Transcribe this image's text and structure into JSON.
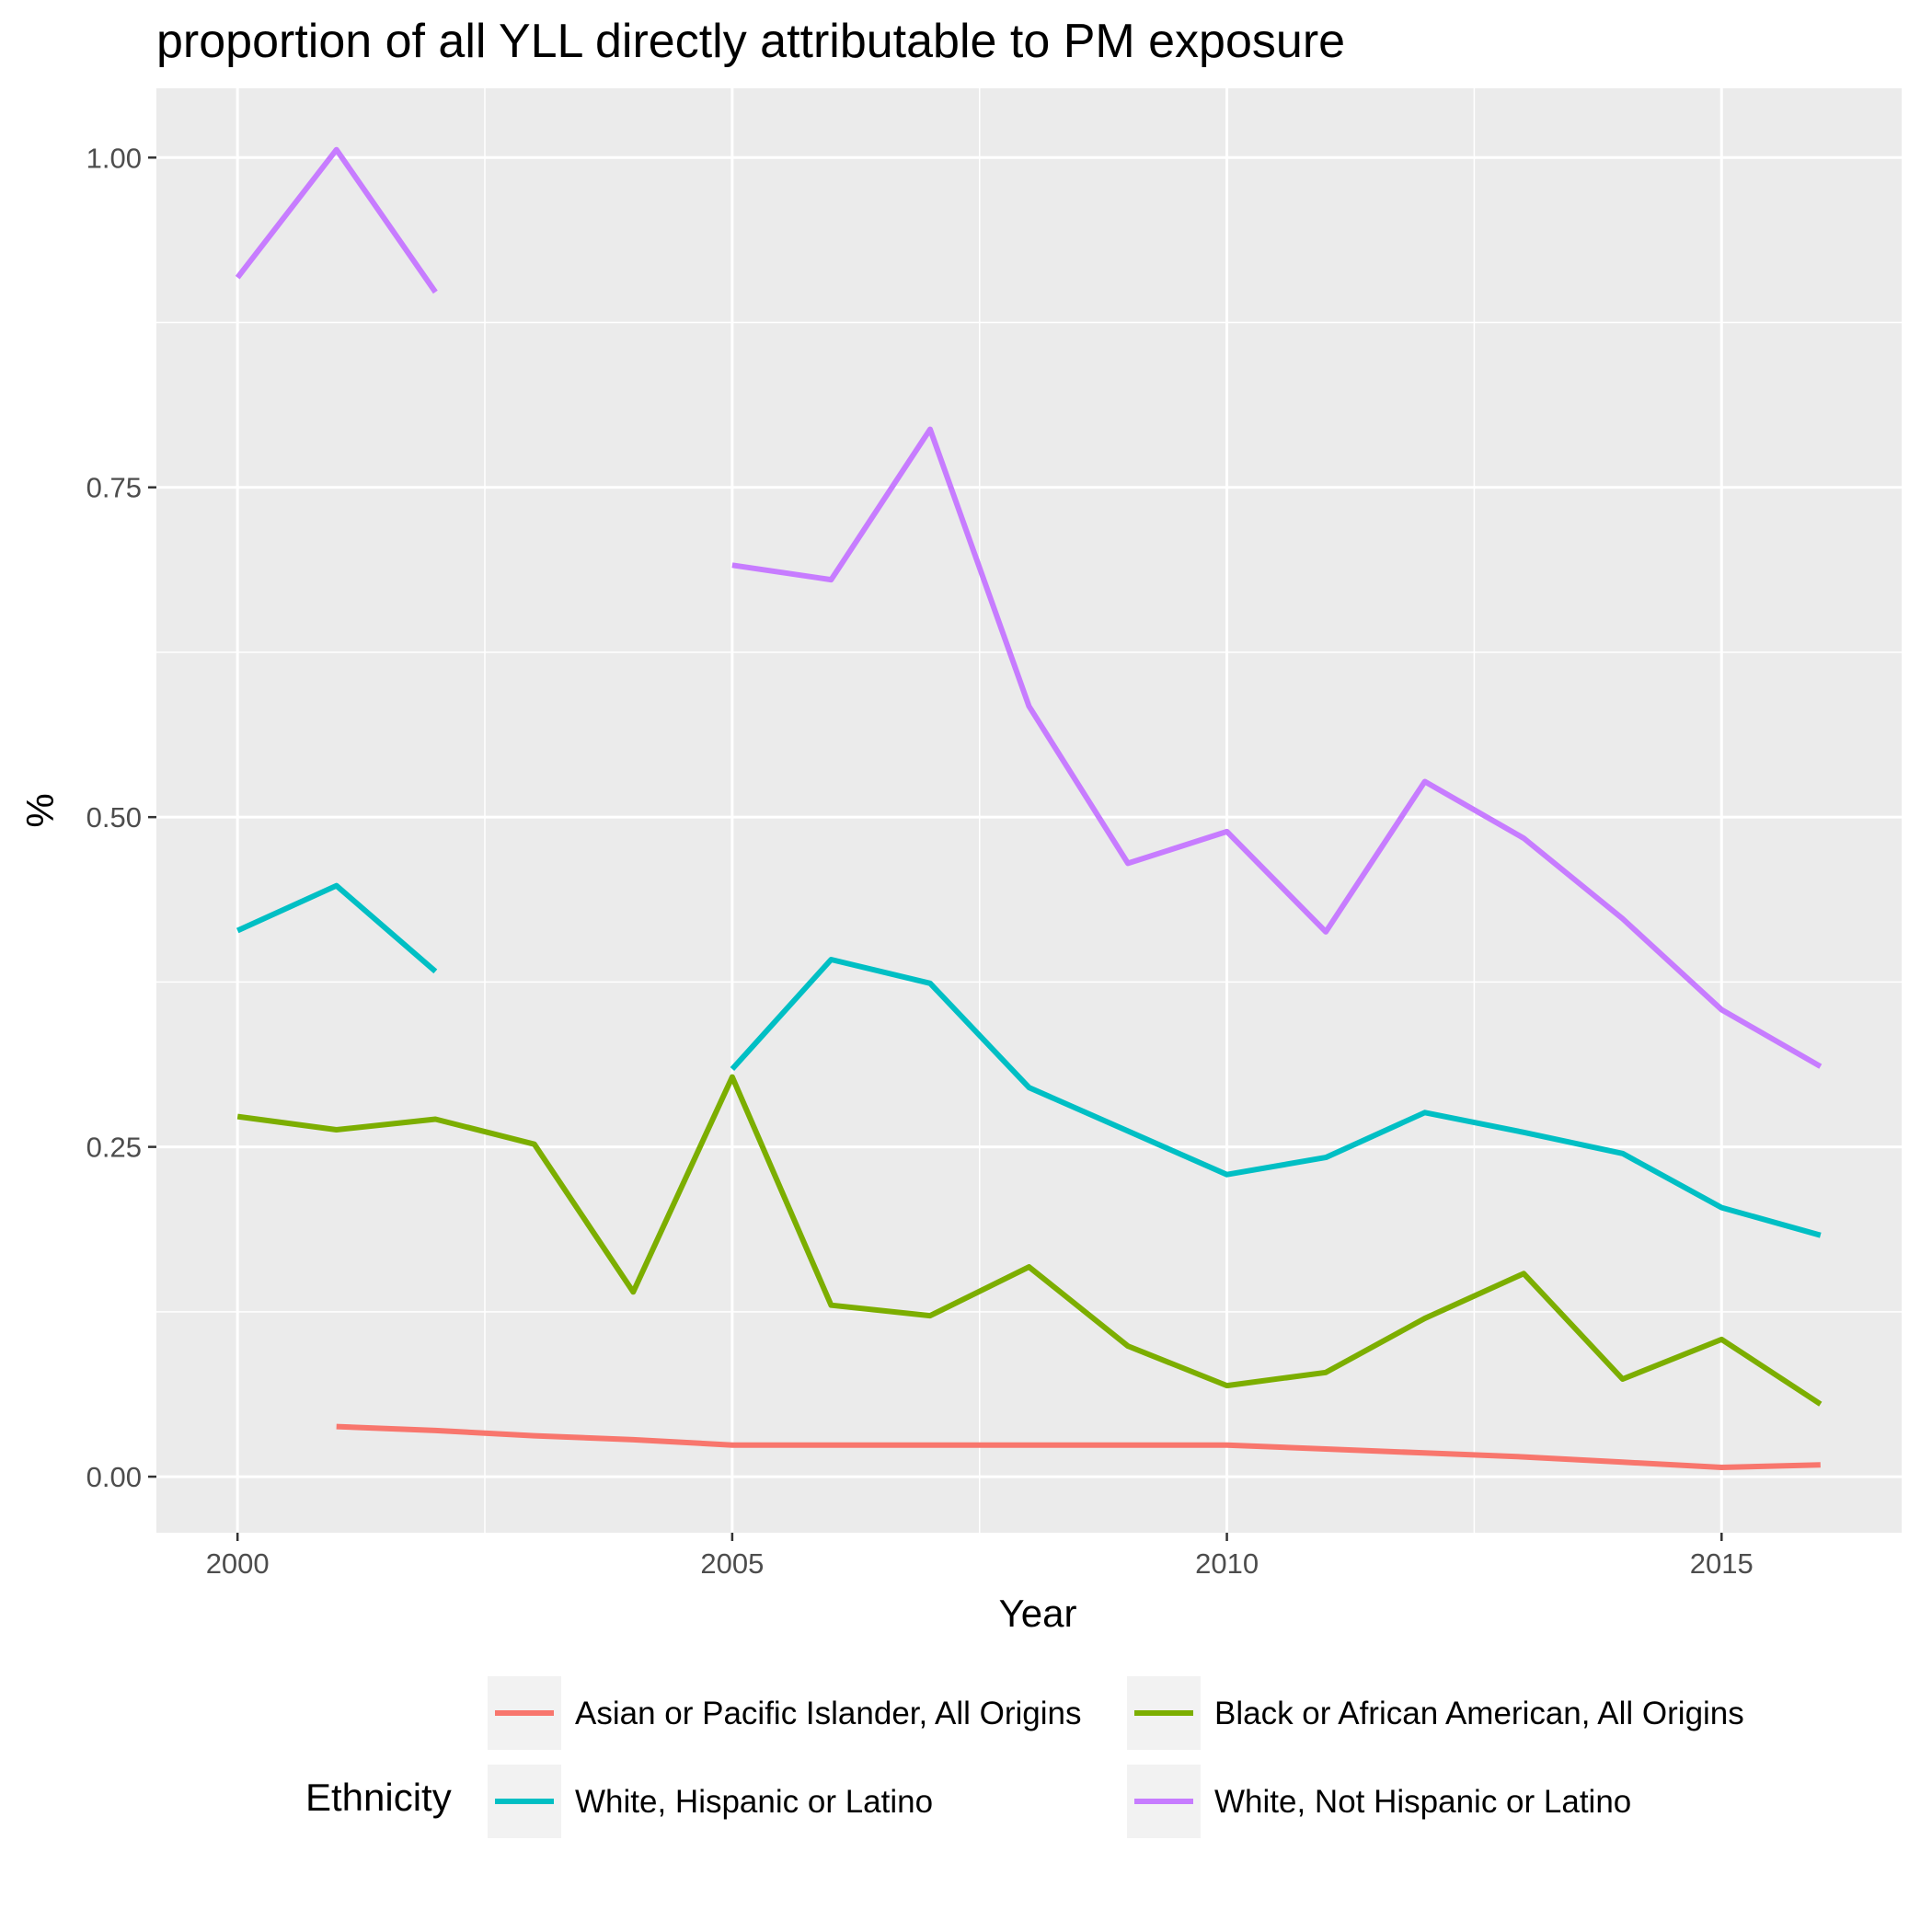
{
  "chart_data": {
    "type": "line",
    "title": "proportion of all YLL directly attributable to PM exposure",
    "xlabel": "Year",
    "ylabel": "%",
    "xlim": [
      1999.18,
      2016.82
    ],
    "ylim": [
      -0.0425,
      1.0525
    ],
    "xticks": [
      2000,
      2005,
      2010,
      2015
    ],
    "xtick_labels": [
      "2000",
      "2005",
      "2010",
      "2015"
    ],
    "yticks": [
      0,
      0.25,
      0.5,
      0.75,
      1.0
    ],
    "ytick_labels": [
      "0.00",
      "0.25",
      "0.50",
      "0.75",
      "1.00"
    ],
    "grid": true,
    "legend": {
      "title": "Ethnicity",
      "position": "bottom"
    },
    "series": [
      {
        "name": "Asian or Pacific Islander, All Origins",
        "color": "#F8766D",
        "x": [
          2001,
          2002,
          2003,
          2004,
          2005,
          2006,
          2007,
          2008,
          2009,
          2010,
          2011,
          2012,
          2013,
          2014,
          2015,
          2016
        ],
        "y": [
          0.038,
          0.035,
          0.031,
          0.028,
          0.024,
          0.024,
          0.024,
          0.024,
          0.024,
          0.024,
          0.021,
          0.018,
          0.015,
          0.011,
          0.007,
          0.009
        ]
      },
      {
        "name": "Black or African American, All Origins",
        "color": "#7CAE00",
        "x": [
          2000,
          2001,
          2002,
          2003,
          2004,
          2005,
          2006,
          2007,
          2008,
          2009,
          2010,
          2011,
          2012,
          2013,
          2014,
          2015,
          2016
        ],
        "y": [
          0.273,
          0.263,
          0.271,
          0.252,
          0.14,
          0.303,
          0.13,
          0.122,
          0.159,
          0.099,
          0.069,
          0.079,
          0.12,
          0.154,
          0.074,
          0.104,
          0.055
        ]
      },
      {
        "name": "White, Hispanic or Latino",
        "color": "#00BFC4",
        "x": [
          2000,
          2001,
          2002,
          null,
          2005,
          2006,
          2007,
          2008,
          2009,
          2010,
          2011,
          2012,
          2013,
          2014,
          2015,
          2016
        ],
        "y": [
          0.414,
          0.448,
          0.383,
          null,
          0.309,
          0.392,
          0.374,
          0.295,
          0.262,
          0.229,
          0.242,
          0.276,
          0.261,
          0.245,
          0.204,
          0.183
        ]
      },
      {
        "name": "White, Not Hispanic or Latino",
        "color": "#C77CFF",
        "x": [
          2000,
          2001,
          2002,
          null,
          2005,
          2006,
          2007,
          2008,
          2009,
          2010,
          2011,
          2012,
          2013,
          2014,
          2015,
          2016
        ],
        "y": [
          0.909,
          1.006,
          0.898,
          null,
          0.691,
          0.68,
          0.794,
          0.584,
          0.465,
          0.489,
          0.413,
          0.527,
          0.484,
          0.423,
          0.354,
          0.311
        ]
      }
    ]
  }
}
